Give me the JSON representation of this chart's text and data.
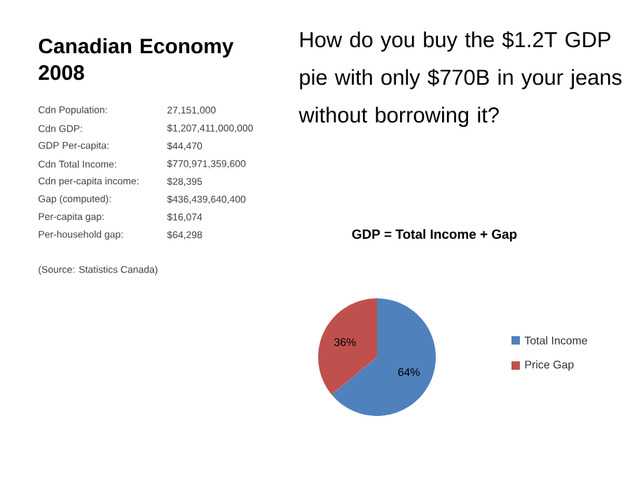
{
  "chart_data": [
    {
      "type": "other",
      "title": "Canadian Economy 2008",
      "annotations": [
        "Cdn Population:",
        "27,151,000",
        "Cdn GDP:",
        "$1,207,411,000,000",
        "GDP Per-capita:",
        "$44,470",
        "Cdn Total Income:",
        "$770,971,359,600",
        "Cdn per-capita income:",
        "$28,395",
        "Gap (computed):",
        "$436,439,640,400",
        "Per-capita gap:",
        "$16,074",
        "Per-household gap:",
        "$64,298",
        "(Source: Statistics Canada)"
      ]
    },
    {
      "type": "pie",
      "title": "How do you buy the $1.2T GDP pie with only $770B in your jeans without borrowing it?",
      "subtitle": "GDP = Total Income + Gap",
      "categories": [
        "Total Income",
        "Price Gap"
      ],
      "values": [
        64,
        36
      ],
      "colors": [
        "#4f81bd",
        "#c0504d"
      ],
      "value_labels": [
        "64%",
        "36%"
      ],
      "legend": "right"
    }
  ]
}
